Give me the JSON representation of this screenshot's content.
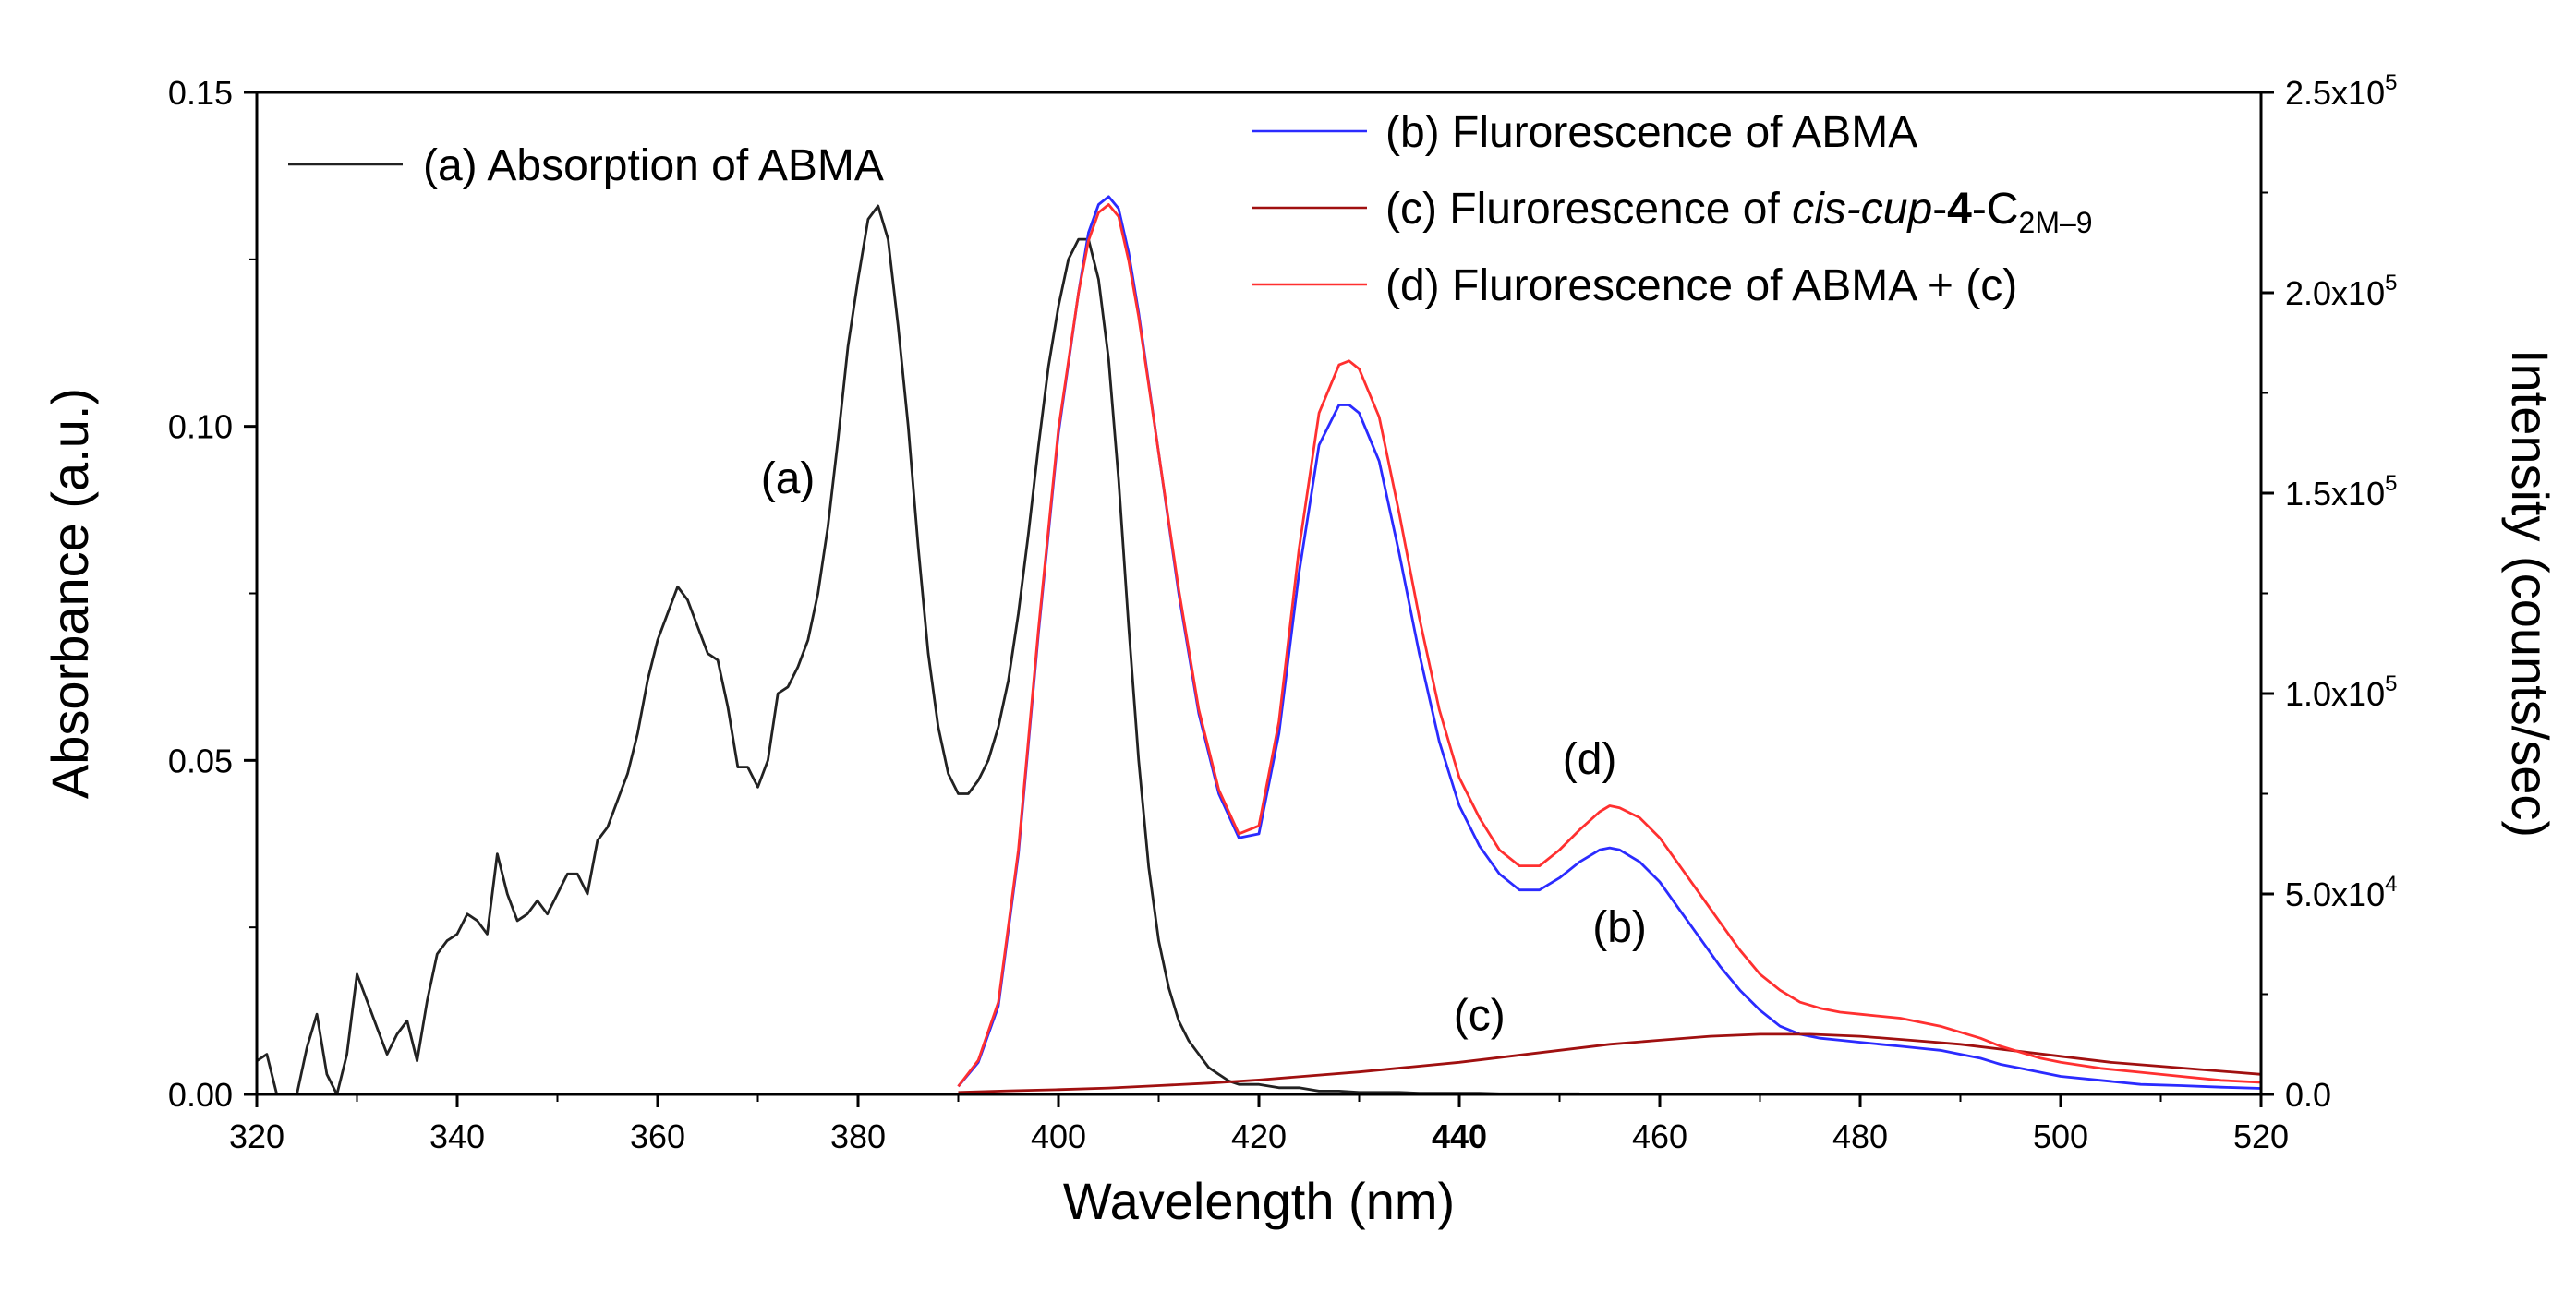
{
  "chart_data": {
    "type": "line",
    "title": "",
    "xlabel": "Wavelength (nm)",
    "ylabel": "Absorbance (a.u.)",
    "y2label": "Intensity (counts/sec)",
    "xlim": [
      320,
      520
    ],
    "ylim": [
      0,
      0.15
    ],
    "y2lim": [
      0,
      250000
    ],
    "x_ticks": [
      {
        "value": 320,
        "label": "320",
        "bold": false
      },
      {
        "value": 340,
        "label": "340",
        "bold": false
      },
      {
        "value": 360,
        "label": "360",
        "bold": false
      },
      {
        "value": 380,
        "label": "380",
        "bold": false
      },
      {
        "value": 400,
        "label": "400",
        "bold": false
      },
      {
        "value": 420,
        "label": "420",
        "bold": false
      },
      {
        "value": 440,
        "label": "440",
        "bold": true
      },
      {
        "value": 460,
        "label": "460",
        "bold": false
      },
      {
        "value": 480,
        "label": "480",
        "bold": false
      },
      {
        "value": 500,
        "label": "500",
        "bold": false
      },
      {
        "value": 520,
        "label": "520",
        "bold": false
      }
    ],
    "y_ticks": [
      {
        "value": 0,
        "label": "0.00"
      },
      {
        "value": 0.05,
        "label": "0.05"
      },
      {
        "value": 0.1,
        "label": "0.10"
      },
      {
        "value": 0.15,
        "label": "0.15"
      }
    ],
    "y2_ticks": [
      {
        "value": 0,
        "mantissa": "0.0",
        "exp": ""
      },
      {
        "value": 50000,
        "mantissa": "5.0x10",
        "exp": "4"
      },
      {
        "value": 100000,
        "mantissa": "1.0x10",
        "exp": "5"
      },
      {
        "value": 150000,
        "mantissa": "1.5x10",
        "exp": "5"
      },
      {
        "value": 200000,
        "mantissa": "2.0x10",
        "exp": "5"
      },
      {
        "value": 250000,
        "mantissa": "2.5x10",
        "exp": "5"
      }
    ],
    "series": [
      {
        "name": "(a) Absorption of ABMA",
        "axis": "left",
        "color": "#222222",
        "x": [
          320,
          321,
          322,
          323,
          324,
          325,
          326,
          327,
          328,
          329,
          330,
          331,
          332,
          333,
          334,
          335,
          336,
          337,
          338,
          339,
          340,
          341,
          342,
          343,
          344,
          345,
          346,
          347,
          348,
          349,
          350,
          351,
          352,
          353,
          354,
          355,
          356,
          357,
          358,
          359,
          360,
          361,
          362,
          363,
          364,
          365,
          366,
          367,
          368,
          369,
          370,
          371,
          372,
          373,
          374,
          375,
          376,
          377,
          378,
          379,
          380,
          381,
          382,
          383,
          384,
          385,
          386,
          387,
          388,
          389,
          390,
          391,
          392,
          393,
          394,
          395,
          396,
          397,
          398,
          399,
          400,
          401,
          402,
          403,
          404,
          405,
          406,
          407,
          408,
          409,
          410,
          411,
          412,
          413,
          414,
          415,
          416,
          417,
          418,
          420,
          422,
          424,
          426,
          428,
          430,
          432,
          434,
          436,
          438,
          440,
          442,
          444,
          446,
          448,
          450,
          452
        ],
        "y": [
          0.005,
          0.006,
          0.0,
          -0.004,
          0.0,
          0.007,
          0.012,
          0.003,
          0.0,
          0.006,
          0.018,
          0.014,
          0.01,
          0.006,
          0.009,
          0.011,
          0.005,
          0.014,
          0.021,
          0.023,
          0.024,
          0.027,
          0.026,
          0.024,
          0.036,
          0.03,
          0.026,
          0.027,
          0.029,
          0.027,
          0.03,
          0.033,
          0.033,
          0.03,
          0.038,
          0.04,
          0.044,
          0.048,
          0.054,
          0.062,
          0.068,
          0.072,
          0.076,
          0.074,
          0.07,
          0.066,
          0.065,
          0.058,
          0.049,
          0.049,
          0.046,
          0.05,
          0.06,
          0.061,
          0.064,
          0.068,
          0.075,
          0.085,
          0.098,
          0.112,
          0.122,
          0.131,
          0.133,
          0.128,
          0.115,
          0.1,
          0.082,
          0.066,
          0.055,
          0.048,
          0.045,
          0.045,
          0.047,
          0.05,
          0.055,
          0.062,
          0.072,
          0.084,
          0.097,
          0.109,
          0.118,
          0.125,
          0.128,
          0.128,
          0.122,
          0.11,
          0.092,
          0.07,
          0.05,
          0.034,
          0.023,
          0.016,
          0.011,
          0.008,
          0.006,
          0.004,
          0.003,
          0.002,
          0.0015,
          0.0015,
          0.001,
          0.001,
          0.0005,
          0.0005,
          0.0003,
          0.0003,
          0.0003,
          0.0002,
          0.0002,
          0.0002,
          0.0002,
          0.0001,
          0.0001,
          0.0001,
          0.0001,
          0.0001
        ]
      },
      {
        "name": "(b) Flurorescence of ABMA",
        "axis": "right",
        "color": "#2b2bff",
        "x": [
          390,
          392,
          394,
          396,
          398,
          400,
          402,
          403,
          404,
          405,
          406,
          407,
          408,
          410,
          412,
          414,
          416,
          418,
          420,
          422,
          424,
          426,
          428,
          429,
          430,
          432,
          434,
          436,
          438,
          440,
          442,
          444,
          446,
          448,
          450,
          452,
          454,
          455,
          456,
          458,
          460,
          462,
          464,
          466,
          468,
          470,
          472,
          474,
          476,
          478,
          480,
          482,
          484,
          486,
          488,
          490,
          492,
          494,
          496,
          498,
          500,
          504,
          508,
          512,
          516,
          520
        ],
        "y": [
          2000,
          8000,
          22000,
          60000,
          115000,
          165000,
          200000,
          215000,
          222000,
          224000,
          221000,
          210000,
          195000,
          160000,
          125000,
          95000,
          75000,
          64000,
          65000,
          90000,
          130000,
          162000,
          172000,
          172000,
          170000,
          158000,
          135000,
          110000,
          88000,
          72000,
          62000,
          55000,
          51000,
          51000,
          54000,
          58000,
          61000,
          61500,
          61000,
          58000,
          53000,
          46000,
          39000,
          32000,
          26000,
          21000,
          17000,
          15000,
          14000,
          13500,
          13000,
          12500,
          12000,
          11500,
          11000,
          10000,
          9000,
          7500,
          6500,
          5500,
          4500,
          3500,
          2500,
          2200,
          1800,
          1500
        ]
      },
      {
        "name": "(c) Flurorescence of cis-cup-4-C2M–9",
        "axis": "right",
        "color": "#a01010",
        "x": [
          390,
          395,
          400,
          405,
          410,
          415,
          420,
          425,
          430,
          435,
          440,
          445,
          450,
          455,
          460,
          465,
          470,
          475,
          480,
          485,
          490,
          495,
          500,
          505,
          510,
          515,
          520
        ],
        "y": [
          500,
          900,
          1200,
          1600,
          2200,
          2800,
          3600,
          4600,
          5600,
          6800,
          8000,
          9500,
          11000,
          12500,
          13500,
          14500,
          15000,
          15000,
          14500,
          13500,
          12500,
          11000,
          9500,
          8000,
          7000,
          6000,
          5000
        ]
      },
      {
        "name": "(d) Flurorescence of ABMA + (c)",
        "axis": "right",
        "color": "#ff3030",
        "x": [
          390,
          392,
          394,
          396,
          398,
          400,
          402,
          403,
          404,
          405,
          406,
          407,
          408,
          410,
          412,
          414,
          416,
          418,
          420,
          422,
          424,
          426,
          428,
          429,
          430,
          432,
          434,
          436,
          438,
          440,
          442,
          444,
          446,
          448,
          450,
          452,
          454,
          455,
          456,
          458,
          460,
          462,
          464,
          466,
          468,
          470,
          472,
          474,
          476,
          478,
          480,
          482,
          484,
          486,
          488,
          490,
          492,
          494,
          496,
          498,
          500,
          504,
          508,
          512,
          516,
          520
        ],
        "y": [
          2000,
          8500,
          23000,
          61000,
          116000,
          166000,
          200000,
          213000,
          220000,
          222000,
          219000,
          208000,
          194000,
          160000,
          126000,
          96000,
          76000,
          65000,
          67000,
          93000,
          136000,
          170000,
          182000,
          183000,
          181000,
          169000,
          145000,
          119000,
          96000,
          79000,
          69000,
          61000,
          57000,
          57000,
          61000,
          66000,
          70500,
          72000,
          71500,
          69000,
          64000,
          57000,
          50000,
          43000,
          36000,
          30000,
          26000,
          23000,
          21500,
          20500,
          20000,
          19500,
          19000,
          18000,
          17000,
          15500,
          14000,
          12000,
          10500,
          9000,
          8000,
          6500,
          5500,
          4500,
          3500,
          3000
        ]
      }
    ],
    "legend": {
      "a_label": "(a) Absorption of ABMA",
      "b_label": "(b) Flurorescence of ABMA",
      "c_prefix": "(c) Flurorescence of ",
      "c_italic": "cis-cup",
      "c_dash": "-",
      "c_bold": "4",
      "c_suffix": "-C",
      "c_subscript": "2M–9",
      "d_label": "(d) Flurorescence of ABMA + (c)"
    },
    "annotations": [
      {
        "text": "(a)",
        "x": 373,
        "y": 0.09,
        "axis": "left"
      },
      {
        "text": "(d)",
        "x": 453,
        "y": 80000,
        "axis": "right"
      },
      {
        "text": "(b)",
        "x": 456,
        "y": 38000,
        "axis": "right"
      },
      {
        "text": "(c)",
        "x": 442,
        "y": 16000,
        "axis": "right"
      }
    ]
  }
}
